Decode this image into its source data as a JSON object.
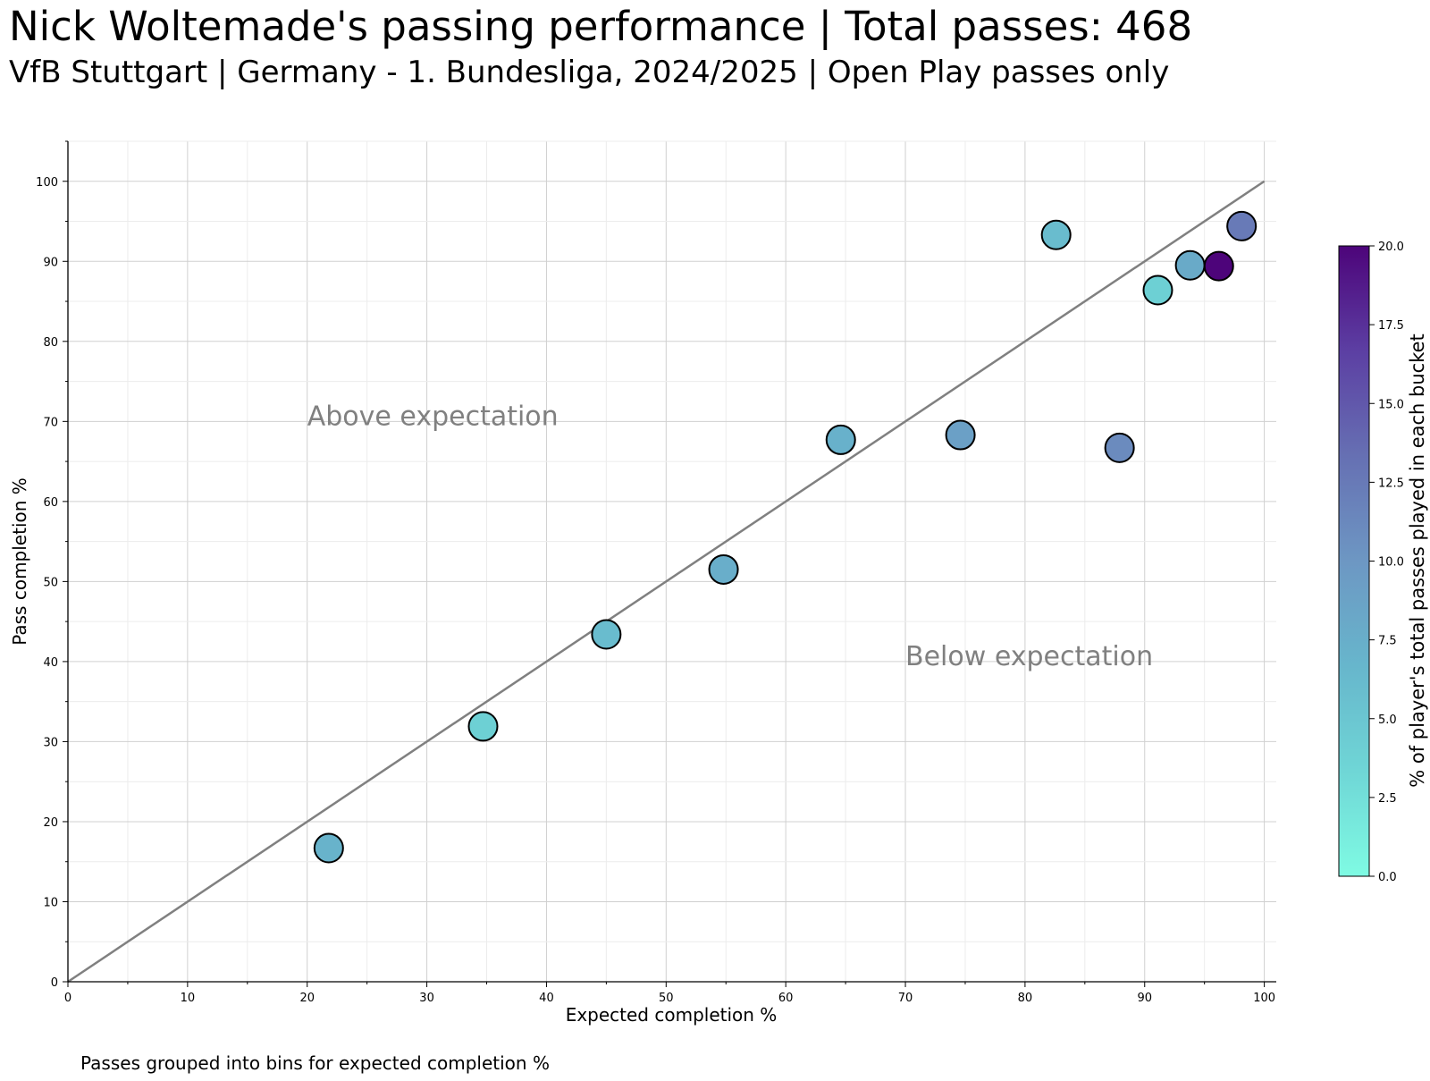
{
  "title": "Nick Woltemade's passing performance | Total passes: 468",
  "subtitle": "VfB Stuttgart | Germany - 1. Bundesliga, 2024/2025 | Open Play passes only",
  "footnote": "Passes grouped into bins for expected completion %",
  "chart_data": {
    "type": "scatter",
    "xlabel": "Expected completion %",
    "ylabel": "Pass completion %",
    "xlim": [
      0,
      101
    ],
    "ylim": [
      0,
      105
    ],
    "x_ticks": [
      0,
      10,
      20,
      30,
      40,
      50,
      60,
      70,
      80,
      90,
      100
    ],
    "y_ticks": [
      0,
      10,
      20,
      30,
      40,
      50,
      60,
      70,
      80,
      90,
      100
    ],
    "grid": true,
    "reference_line": {
      "x": [
        0,
        100
      ],
      "y": [
        0,
        100
      ],
      "color": "#808080"
    },
    "annotations": [
      {
        "text": "Above expectation",
        "x": 20,
        "y": 70
      },
      {
        "text": "Below expectation",
        "x": 70,
        "y": 40
      }
    ],
    "points": [
      {
        "x": 21.8,
        "y": 16.7,
        "share": 7.0
      },
      {
        "x": 34.7,
        "y": 31.9,
        "share": 4.0
      },
      {
        "x": 45.0,
        "y": 43.4,
        "share": 6.0
      },
      {
        "x": 54.8,
        "y": 51.5,
        "share": 7.5
      },
      {
        "x": 64.6,
        "y": 67.7,
        "share": 7.2
      },
      {
        "x": 74.6,
        "y": 68.3,
        "share": 9.0
      },
      {
        "x": 82.6,
        "y": 93.3,
        "share": 6.0
      },
      {
        "x": 87.9,
        "y": 66.7,
        "share": 11.0
      },
      {
        "x": 91.1,
        "y": 86.4,
        "share": 4.0
      },
      {
        "x": 93.8,
        "y": 89.5,
        "share": 8.0
      },
      {
        "x": 96.2,
        "y": 89.4,
        "share": 20.0
      },
      {
        "x": 98.1,
        "y": 94.4,
        "share": 12.5
      }
    ],
    "colorbar": {
      "label": "% of player's total passes played in each bucket",
      "min": 0,
      "max": 20,
      "ticks": [
        "0.0",
        "2.5",
        "5.0",
        "7.5",
        "10.0",
        "12.5",
        "15.0",
        "17.5",
        "20.0"
      ],
      "colors": [
        "#7ffbe3",
        "#6fd6d6",
        "#67b6cc",
        "#6d97c3",
        "#6670b3",
        "#5c3fa3",
        "#4d047a"
      ]
    }
  }
}
